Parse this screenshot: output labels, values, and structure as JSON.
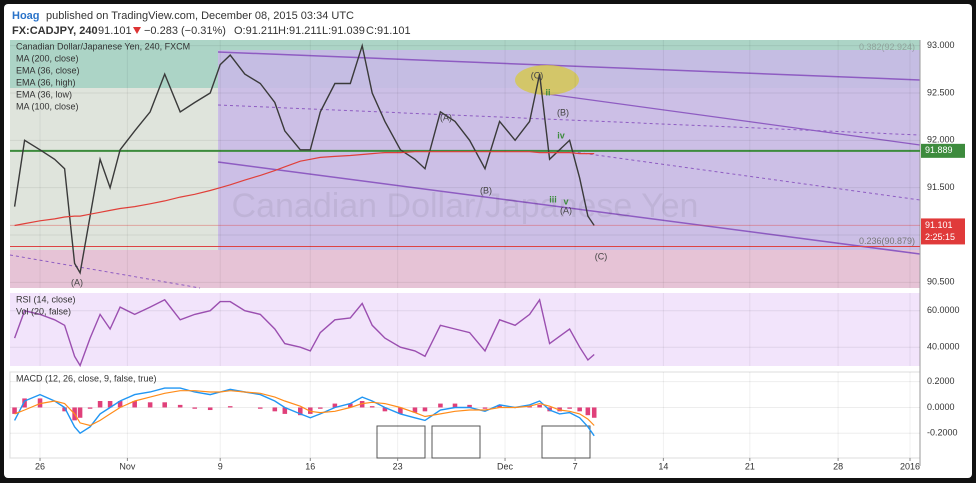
{
  "header": {
    "author": "Hoag",
    "published": "published on TradingView.com, December 08, 2015 03:34 UTC",
    "symbol": "FX:CADJPY, 240",
    "price": "91.101",
    "change": "−0.283 (−0.31%)",
    "open": "O:91.211",
    "high": "H:91.211",
    "low": "L:91.039",
    "close": "C:91.101"
  },
  "chart_data": [
    {
      "type": "line",
      "watermark": "Canadian Dollar/Japanese Yen",
      "x": [
        0.5,
        1.6,
        3.3,
        4.9,
        6.0,
        7.1,
        7.7,
        8.8,
        9.9,
        11.0,
        12.1,
        13.7,
        15.4,
        17.0,
        18.7,
        20.3,
        22.0,
        23.1,
        24.2,
        25.8,
        27.5,
        29.1,
        30.2,
        31.9,
        33.0,
        34.1,
        35.7,
        37.4,
        38.7,
        39.8,
        41.2,
        42.9,
        44.5,
        45.6,
        47.3,
        48.9,
        50.5,
        52.2,
        53.8,
        55.5,
        57.1,
        58.2,
        59.3,
        60.4,
        61.5,
        62.6,
        63.5,
        64.2
      ],
      "series": [
        {
          "name": "Canadian Dollar/Japanese Yen, 240, FXCM",
          "color": "#3a3a3a",
          "values": [
            91.3,
            92.0,
            91.9,
            91.8,
            91.7,
            90.7,
            90.6,
            91.2,
            91.8,
            91.5,
            91.9,
            92.1,
            92.3,
            92.7,
            92.3,
            92.4,
            92.5,
            92.8,
            92.9,
            92.7,
            92.6,
            92.4,
            92.1,
            91.9,
            91.9,
            92.3,
            92.6,
            92.6,
            93.0,
            92.5,
            92.2,
            91.9,
            91.8,
            91.7,
            92.3,
            92.2,
            92.0,
            91.7,
            92.2,
            92.0,
            92.2,
            92.7,
            91.8,
            91.9,
            92.0,
            91.6,
            91.2,
            91.1
          ]
        },
        {
          "name": "MA (200, close)",
          "color": "#e0403a",
          "values": [
            91.1,
            91.12,
            91.15,
            91.17,
            91.19,
            91.2,
            91.2,
            91.22,
            91.24,
            91.26,
            91.28,
            91.3,
            91.33,
            91.36,
            91.4,
            91.43,
            91.47,
            91.5,
            91.53,
            91.58,
            91.63,
            91.68,
            91.72,
            91.78,
            91.8,
            91.82,
            91.83,
            91.84,
            91.85,
            91.86,
            91.87,
            91.87,
            91.88,
            91.88,
            91.88,
            91.88,
            91.88,
            91.88,
            91.88,
            91.88,
            91.88,
            91.87,
            91.87,
            91.87,
            91.87,
            91.86,
            91.86,
            91.86
          ]
        }
      ],
      "studies": [
        "EMA (36, close)",
        "EMA (36, high)",
        "EMA (36, low)",
        "MA (100, close)"
      ],
      "xlim": [
        0,
        100
      ],
      "ylim": [
        90.44,
        93.06
      ],
      "yticks": [
        {
          "value": 90.5,
          "label": "90.500"
        },
        {
          "value": 91.0,
          "label": "91.000"
        },
        {
          "value": 91.5,
          "label": "91.500"
        },
        {
          "value": 92.0,
          "label": "92.000"
        },
        {
          "value": 92.5,
          "label": "92.500"
        },
        {
          "value": 93.0,
          "label": "93.000"
        }
      ],
      "hline": {
        "value": 91.889,
        "color": "#3d8b3d"
      },
      "last": 91.101,
      "countdown": "2:25:15",
      "fib": [
        {
          "value": 90.879,
          "label": "0.236(90.879)"
        },
        {
          "value": 92.924,
          "label": "0.382(92.924)"
        }
      ],
      "annotations": [
        "(A)",
        "(A)",
        "(B)",
        "(C)",
        "ii",
        "(B)",
        "iv",
        "iii",
        "v",
        "(A)",
        "(C)"
      ]
    },
    {
      "type": "line",
      "x": [
        0.5,
        1.6,
        3.3,
        4.9,
        6.0,
        7.1,
        7.7,
        8.8,
        9.9,
        11.0,
        12.1,
        13.7,
        15.4,
        17.0,
        18.7,
        20.3,
        22.0,
        23.1,
        24.2,
        25.8,
        27.5,
        29.1,
        30.2,
        31.9,
        33.0,
        34.1,
        35.7,
        37.4,
        38.7,
        39.8,
        41.2,
        42.9,
        44.5,
        45.6,
        47.3,
        48.9,
        50.5,
        52.2,
        53.8,
        55.5,
        57.1,
        58.2,
        59.3,
        60.4,
        61.5,
        62.6,
        63.5,
        64.2
      ],
      "series": [
        {
          "name": "RSI (14, close)",
          "color": "#9b4fb0",
          "values": [
            45,
            60,
            58,
            55,
            52,
            35,
            30,
            45,
            58,
            50,
            62,
            58,
            62,
            66,
            55,
            58,
            60,
            65,
            65,
            60,
            58,
            50,
            42,
            40,
            38,
            48,
            55,
            56,
            64,
            52,
            45,
            40,
            38,
            35,
            52,
            50,
            48,
            38,
            55,
            52,
            58,
            66,
            42,
            46,
            50,
            40,
            33,
            36
          ]
        }
      ],
      "studies": [
        "Vol (20, false)"
      ],
      "xlim": [
        0,
        100
      ],
      "ylim": [
        29.7,
        69.7
      ],
      "yticks": [
        {
          "value": 40,
          "label": "40.0000"
        },
        {
          "value": 60,
          "label": "60.0000"
        }
      ]
    },
    {
      "type": "line",
      "x": [
        0.5,
        1.6,
        3.3,
        4.9,
        6.0,
        7.1,
        7.7,
        8.8,
        9.9,
        11.0,
        12.1,
        13.7,
        15.4,
        17.0,
        18.7,
        20.3,
        22.0,
        23.1,
        24.2,
        25.8,
        27.5,
        29.1,
        30.2,
        31.9,
        33.0,
        34.1,
        35.7,
        37.4,
        38.7,
        39.8,
        41.2,
        42.9,
        44.5,
        45.6,
        47.3,
        48.9,
        50.5,
        52.2,
        53.8,
        55.5,
        57.1,
        58.2,
        59.3,
        60.4,
        61.5,
        62.6,
        63.5,
        64.2
      ],
      "title": "MACD (12, 26, close, 9, false, true)",
      "series": [
        {
          "color": "#2196f3",
          "values": [
            -0.1,
            0.05,
            0.1,
            0.05,
            0.0,
            -0.15,
            -0.2,
            -0.15,
            -0.05,
            0.0,
            0.05,
            0.1,
            0.12,
            0.15,
            0.15,
            0.12,
            0.1,
            0.12,
            0.14,
            0.12,
            0.1,
            0.05,
            0.0,
            -0.05,
            -0.08,
            -0.05,
            0.0,
            0.03,
            0.08,
            0.05,
            0.0,
            -0.05,
            -0.08,
            -0.1,
            -0.02,
            0.0,
            0.0,
            -0.03,
            0.02,
            0.0,
            0.02,
            0.05,
            -0.02,
            -0.05,
            -0.04,
            -0.08,
            -0.15,
            -0.22
          ]
        },
        {
          "color": "#ff8c1a",
          "values": [
            -0.05,
            -0.02,
            0.03,
            0.05,
            0.03,
            -0.05,
            -0.12,
            -0.14,
            -0.1,
            -0.05,
            0.0,
            0.05,
            0.08,
            0.11,
            0.13,
            0.13,
            0.12,
            0.12,
            0.13,
            0.12,
            0.11,
            0.08,
            0.05,
            0.01,
            -0.03,
            -0.04,
            -0.03,
            0.0,
            0.03,
            0.04,
            0.03,
            0.0,
            -0.04,
            -0.07,
            -0.05,
            -0.03,
            -0.02,
            -0.02,
            0.0,
            0.0,
            0.01,
            0.03,
            0.01,
            -0.02,
            -0.03,
            -0.05,
            -0.09,
            -0.14
          ]
        }
      ],
      "histogram": {
        "color": "#e0407a",
        "values": [
          -0.05,
          0.07,
          0.07,
          0,
          -0.03,
          -0.1,
          -0.08,
          -0.01,
          0.05,
          0.05,
          0.05,
          0.05,
          0.04,
          0.04,
          0.02,
          -0.01,
          -0.02,
          0,
          0.01,
          0,
          -0.01,
          -0.03,
          -0.05,
          -0.06,
          -0.05,
          -0.01,
          0.03,
          0.03,
          0.05,
          0.01,
          -0.03,
          -0.05,
          -0.04,
          -0.03,
          0.03,
          0.03,
          0.02,
          -0.01,
          0.02,
          0,
          0.01,
          0.02,
          -0.03,
          -0.03,
          -0.01,
          -0.03,
          -0.06,
          -0.08
        ]
      },
      "xlim": [
        0,
        100
      ],
      "ylim": [
        -0.392,
        0.275
      ],
      "yticks": [
        {
          "value": 0.2,
          "label": "0.2000"
        },
        {
          "value": 0,
          "label": "0.0000"
        },
        {
          "value": -0.2,
          "label": "-0.2000"
        }
      ],
      "xticks": [
        {
          "value": 3.3,
          "label": "26"
        },
        {
          "value": 12.9,
          "label": "Nov"
        },
        {
          "value": 23.1,
          "label": "9"
        },
        {
          "value": 33.0,
          "label": "16"
        },
        {
          "value": 42.6,
          "label": "23"
        },
        {
          "value": 54.4,
          "label": "Dec"
        },
        {
          "value": 62.1,
          "label": "7"
        },
        {
          "value": 71.8,
          "label": "14"
        },
        {
          "value": 81.3,
          "label": "21"
        },
        {
          "value": 91.0,
          "label": "28"
        },
        {
          "value": 98.9,
          "label": "2016"
        }
      ]
    }
  ]
}
